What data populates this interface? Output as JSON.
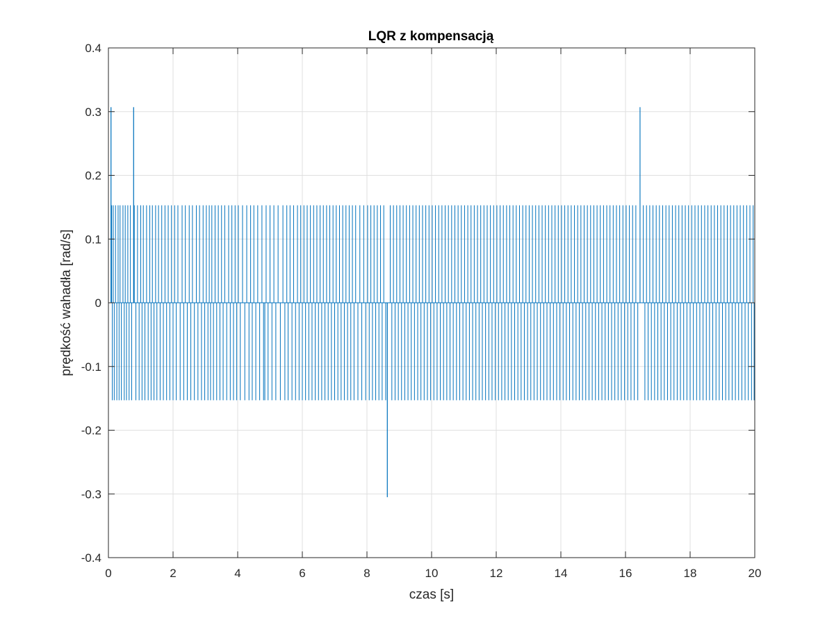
{
  "chart_data": {
    "type": "line",
    "title": "LQR z kompensacją",
    "xlabel": "czas [s]",
    "ylabel": "prędkość wahadła [rad/s]",
    "xlim": [
      0,
      20
    ],
    "ylim": [
      -0.4,
      0.4
    ],
    "xticks": [
      0,
      2,
      4,
      6,
      8,
      10,
      12,
      14,
      16,
      18,
      20
    ],
    "yticks": [
      -0.4,
      -0.3,
      -0.2,
      -0.1,
      0,
      0.1,
      0.2,
      0.3,
      0.4
    ],
    "xtick_labels": [
      "0",
      "2",
      "4",
      "6",
      "8",
      "10",
      "12",
      "14",
      "16",
      "18",
      "20"
    ],
    "ytick_labels": [
      "-0.4",
      "-0.3",
      "-0.2",
      "-0.1",
      "0",
      "0.1",
      "0.2",
      "0.3",
      "0.4"
    ],
    "grid": true,
    "line_color": "#0072BD",
    "series": [
      {
        "baseline": 0,
        "spike_level": 0.153,
        "peaks": [
          {
            "x": 0.08,
            "y": 0.307
          },
          {
            "x": 0.78,
            "y": 0.307
          },
          {
            "x": 8.63,
            "y": -0.305
          },
          {
            "x": 16.45,
            "y": 0.307
          }
        ],
        "positive_spike_times": [
          0.1,
          0.15,
          0.22,
          0.3,
          0.36,
          0.45,
          0.52,
          0.6,
          0.68,
          0.8,
          0.9,
          1.0,
          1.08,
          1.18,
          1.28,
          1.36,
          1.46,
          1.55,
          1.65,
          1.75,
          1.85,
          1.95,
          2.05,
          2.15,
          2.28,
          2.38,
          2.5,
          2.6,
          2.72,
          2.82,
          2.93,
          3.03,
          3.12,
          3.2,
          3.3,
          3.4,
          3.5,
          3.6,
          3.72,
          3.82,
          3.92,
          4.02,
          4.15,
          4.28,
          4.4,
          4.5,
          4.62,
          4.75,
          4.88,
          5.0,
          5.12,
          5.25,
          5.4,
          5.52,
          5.62,
          5.73,
          5.85,
          5.95,
          6.05,
          6.15,
          6.25,
          6.35,
          6.45,
          6.55,
          6.65,
          6.75,
          6.85,
          6.95,
          7.05,
          7.15,
          7.25,
          7.35,
          7.45,
          7.55,
          7.65,
          7.78,
          7.9,
          8.02,
          8.12,
          8.22,
          8.32,
          8.42,
          8.52,
          8.72,
          8.82,
          8.92,
          9.02,
          9.12,
          9.22,
          9.32,
          9.42,
          9.52,
          9.62,
          9.72,
          9.82,
          9.92,
          10.02,
          10.12,
          10.22,
          10.32,
          10.42,
          10.52,
          10.62,
          10.72,
          10.82,
          10.92,
          11.02,
          11.12,
          11.22,
          11.32,
          11.42,
          11.52,
          11.62,
          11.72,
          11.82,
          11.92,
          12.02,
          12.12,
          12.22,
          12.32,
          12.42,
          12.52,
          12.62,
          12.72,
          12.82,
          12.92,
          13.02,
          13.12,
          13.22,
          13.32,
          13.42,
          13.52,
          13.62,
          13.72,
          13.82,
          13.92,
          14.02,
          14.12,
          14.22,
          14.32,
          14.42,
          14.52,
          14.62,
          14.72,
          14.82,
          14.92,
          15.02,
          15.12,
          15.22,
          15.32,
          15.42,
          15.52,
          15.62,
          15.72,
          15.82,
          15.92,
          16.02,
          16.12,
          16.22,
          16.32,
          16.55,
          16.65,
          16.75,
          16.85,
          16.95,
          17.05,
          17.15,
          17.25,
          17.35,
          17.45,
          17.55,
          17.65,
          17.75,
          17.85,
          17.95,
          18.05,
          18.15,
          18.25,
          18.35,
          18.45,
          18.55,
          18.65,
          18.75,
          18.85,
          18.95,
          19.05,
          19.15,
          19.25,
          19.35,
          19.45,
          19.55,
          19.65,
          19.75,
          19.85,
          19.95
        ],
        "negative_spike_times": [
          0.12,
          0.18,
          0.26,
          0.33,
          0.4,
          0.49,
          0.56,
          0.64,
          0.72,
          0.85,
          0.95,
          1.04,
          1.13,
          1.23,
          1.32,
          1.41,
          1.5,
          1.6,
          1.7,
          1.8,
          1.9,
          2.0,
          2.1,
          2.22,
          2.33,
          2.44,
          2.55,
          2.66,
          2.77,
          2.88,
          2.98,
          3.08,
          3.16,
          3.25,
          3.35,
          3.45,
          3.55,
          3.66,
          3.77,
          3.87,
          3.97,
          4.08,
          4.22,
          4.35,
          4.45,
          4.56,
          4.68,
          4.8,
          4.84,
          4.94,
          5.06,
          5.18,
          5.32,
          5.46,
          5.56,
          5.68,
          5.79,
          5.9,
          6.0,
          6.1,
          6.2,
          6.3,
          6.4,
          6.5,
          6.6,
          6.7,
          6.8,
          6.9,
          7.0,
          7.1,
          7.2,
          7.3,
          7.4,
          7.5,
          7.6,
          7.72,
          7.84,
          7.96,
          8.07,
          8.17,
          8.27,
          8.37,
          8.47,
          8.58,
          8.77,
          8.87,
          8.97,
          9.07,
          9.17,
          9.27,
          9.37,
          9.47,
          9.57,
          9.67,
          9.77,
          9.87,
          9.97,
          10.07,
          10.17,
          10.27,
          10.37,
          10.47,
          10.57,
          10.67,
          10.77,
          10.87,
          10.97,
          11.07,
          11.17,
          11.27,
          11.37,
          11.47,
          11.57,
          11.67,
          11.77,
          11.87,
          11.97,
          12.07,
          12.17,
          12.27,
          12.37,
          12.47,
          12.57,
          12.67,
          12.77,
          12.87,
          12.97,
          13.07,
          13.17,
          13.27,
          13.37,
          13.47,
          13.57,
          13.67,
          13.77,
          13.87,
          13.97,
          14.07,
          14.17,
          14.27,
          14.37,
          14.47,
          14.57,
          14.67,
          14.77,
          14.87,
          14.97,
          15.07,
          15.17,
          15.27,
          15.37,
          15.47,
          15.57,
          15.67,
          15.77,
          15.87,
          15.97,
          16.07,
          16.17,
          16.27,
          16.38,
          16.6,
          16.7,
          16.8,
          16.9,
          17.0,
          17.1,
          17.2,
          17.3,
          17.4,
          17.5,
          17.6,
          17.7,
          17.8,
          17.9,
          18.0,
          18.1,
          18.2,
          18.3,
          18.4,
          18.5,
          18.6,
          18.7,
          18.8,
          18.9,
          19.0,
          19.1,
          19.2,
          19.3,
          19.4,
          19.5,
          19.6,
          19.7,
          19.8,
          19.9,
          19.98
        ]
      }
    ]
  }
}
